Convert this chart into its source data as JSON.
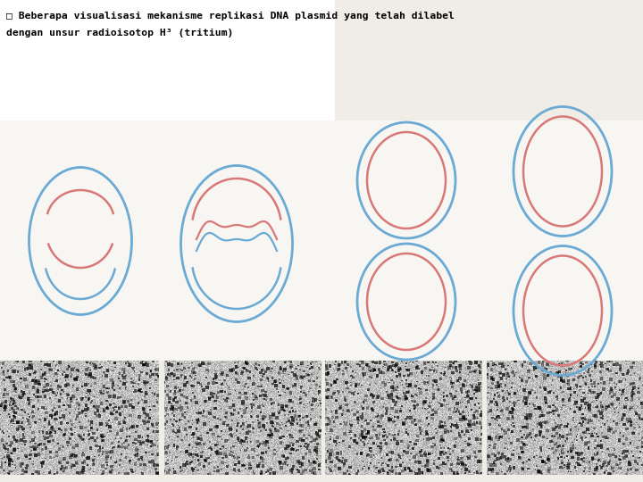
{
  "title_line1": "□ Beberapa visualisasi mekanisme replikasi DNA plasmid yang telah dilabel",
  "title_line2": "dengan unsur radioisotop H³ (tritium)",
  "bg_color": "#f0ede6",
  "panel_bg": "#ebe7df",
  "white_bg": "#f8f6f2",
  "blue": "#6aaad4",
  "red": "#d87878",
  "dark_line": "#444444",
  "title_bg": "#ffffff",
  "noise_light": 0.72,
  "noise_dark": 0.88
}
